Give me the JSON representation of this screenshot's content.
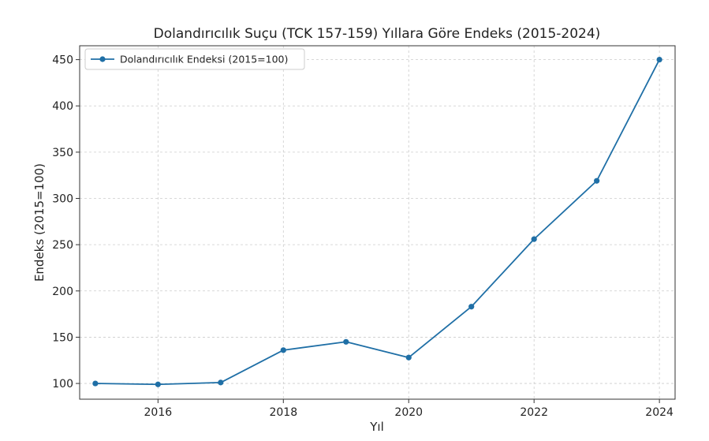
{
  "chart_data": {
    "type": "line",
    "title": "Dolandırıcılık Suçu (TCK 157-159) Yıllara Göre Endeks (2015-2024)",
    "xlabel": "Yıl",
    "ylabel": "Endeks (2015=100)",
    "xlim": [
      2014.75,
      2024.25
    ],
    "ylim": [
      83,
      465
    ],
    "x_ticks": [
      2016,
      2018,
      2020,
      2022,
      2024
    ],
    "y_ticks": [
      100,
      150,
      200,
      250,
      300,
      350,
      400,
      450
    ],
    "grid": true,
    "legend": {
      "placement": "top-left"
    },
    "series": [
      {
        "name": "Dolandırıcılık Endeksi (2015=100)",
        "color": "#1f6fa6",
        "marker": "circle",
        "x": [
          2015,
          2016,
          2017,
          2018,
          2019,
          2020,
          2021,
          2022,
          2023,
          2024
        ],
        "y": [
          100,
          99,
          101,
          136,
          145,
          128,
          183,
          256,
          319,
          450
        ]
      }
    ]
  }
}
